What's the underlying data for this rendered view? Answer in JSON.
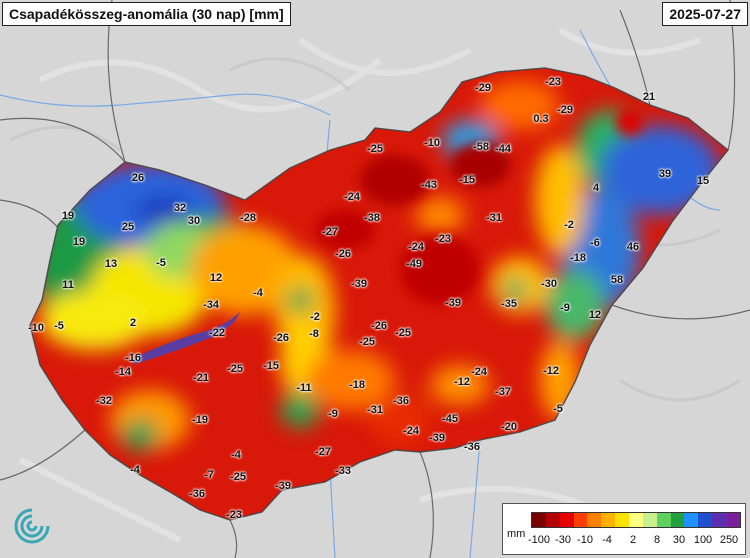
{
  "header": {
    "title": "Csapadékösszeg-anomália (30 nap) [mm]",
    "date": "2025-07-27"
  },
  "legend": {
    "unit": "mm",
    "colors": [
      "#7a0000",
      "#b30000",
      "#e60000",
      "#ff4000",
      "#ff8000",
      "#ffb000",
      "#ffe000",
      "#ffff80",
      "#c8f090",
      "#60d060",
      "#20a040",
      "#1e90ff",
      "#2050d0",
      "#5a30b0",
      "#7a20a0"
    ],
    "ticks": [
      "-100",
      "-30",
      "-10",
      "-4",
      "2",
      "8",
      "30",
      "100",
      "250"
    ]
  },
  "map_values": [
    {
      "label": "-29"
    },
    {
      "label": "-23"
    },
    {
      "label": "-29"
    },
    {
      "label": "0.3"
    },
    {
      "label": "21"
    },
    {
      "label": "-10"
    },
    {
      "label": "-58"
    },
    {
      "label": "-44"
    },
    {
      "label": "-25"
    },
    {
      "label": "-15"
    },
    {
      "label": "-43"
    },
    {
      "label": "39"
    },
    {
      "label": "15"
    },
    {
      "label": "4"
    },
    {
      "label": "26"
    },
    {
      "label": "32"
    },
    {
      "label": "-24"
    },
    {
      "label": "-28"
    },
    {
      "label": "-38"
    },
    {
      "label": "-31"
    },
    {
      "label": "-2"
    },
    {
      "label": "19"
    },
    {
      "label": "30"
    },
    {
      "label": "25"
    },
    {
      "label": "-27"
    },
    {
      "label": "-23"
    },
    {
      "label": "-24"
    },
    {
      "label": "-6"
    },
    {
      "label": "46"
    },
    {
      "label": "19"
    },
    {
      "label": "-26"
    },
    {
      "label": "-18"
    },
    {
      "label": "13"
    },
    {
      "label": "-5"
    },
    {
      "label": "-49"
    },
    {
      "label": "12"
    },
    {
      "label": "11"
    },
    {
      "label": "-4"
    },
    {
      "label": "-39"
    },
    {
      "label": "-30"
    },
    {
      "label": "58"
    },
    {
      "label": "-34"
    },
    {
      "label": "-39"
    },
    {
      "label": "-35"
    },
    {
      "label": "-9"
    },
    {
      "label": "12"
    },
    {
      "label": "-10"
    },
    {
      "label": "-5"
    },
    {
      "label": "2"
    },
    {
      "label": "-2"
    },
    {
      "label": "-22"
    },
    {
      "label": "-26"
    },
    {
      "label": "-8"
    },
    {
      "label": "-26"
    },
    {
      "label": "-25"
    },
    {
      "label": "-25"
    },
    {
      "label": "-16"
    },
    {
      "label": "-14"
    },
    {
      "label": "-25"
    },
    {
      "label": "-15"
    },
    {
      "label": "-12"
    },
    {
      "label": "-24"
    },
    {
      "label": "-12"
    },
    {
      "label": "-21"
    },
    {
      "label": "-11"
    },
    {
      "label": "-18"
    },
    {
      "label": "-37"
    },
    {
      "label": "-32"
    },
    {
      "label": "-36"
    },
    {
      "label": "-9"
    },
    {
      "label": "-31"
    },
    {
      "label": "-19"
    },
    {
      "label": "-45"
    },
    {
      "label": "-5"
    },
    {
      "label": "-20"
    },
    {
      "label": "-24"
    },
    {
      "label": "-39"
    },
    {
      "label": "-27"
    },
    {
      "label": "-36"
    },
    {
      "label": "-4"
    },
    {
      "label": "-4"
    },
    {
      "label": "-7"
    },
    {
      "label": "-25"
    },
    {
      "label": "-33"
    },
    {
      "label": "-39"
    },
    {
      "label": "-36"
    },
    {
      "label": "-23"
    }
  ]
}
